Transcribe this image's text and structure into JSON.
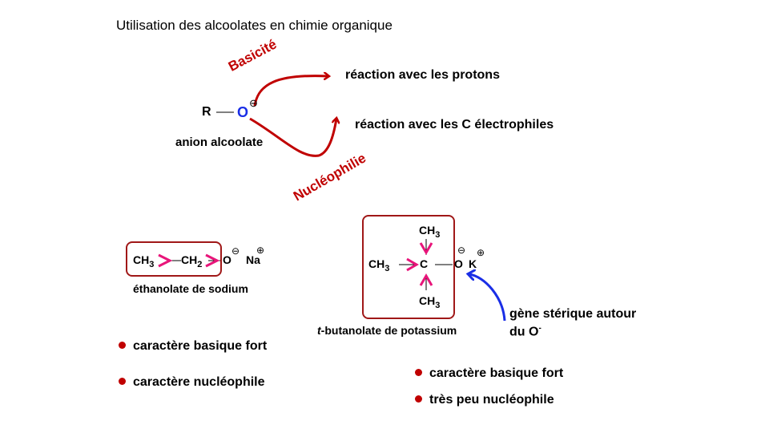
{
  "title": "Utilisation des alcoolates en chimie organique",
  "top": {
    "r_label": "R",
    "o_label": "O",
    "charge_minus": "⊖",
    "anion_label": "anion alcoolate",
    "basicite": "Basicité",
    "nucleophilie": "Nucléophilie",
    "reaction_protons": "réaction avec les protons",
    "reaction_c": "réaction avec les C électrophiles"
  },
  "ethanolate": {
    "ch3": "CH",
    "ch3_sub": "3",
    "ch2": "CH",
    "ch2_sub": "2",
    "o": "O",
    "na": "Na",
    "minus": "⊖",
    "plus": "⊕",
    "name": "éthanolate de sodium",
    "bullets": [
      "caractère basique fort",
      "caractère nucléophile"
    ]
  },
  "tbutanolate": {
    "ch3": "CH",
    "sub3": "3",
    "c": "C",
    "o": "O",
    "k": "K",
    "minus": "⊖",
    "plus": "⊕",
    "name_italic": "t",
    "name_rest": "-butanolate de potassium",
    "steric_line1": "gène stérique autour",
    "steric_line2": "du O",
    "steric_sup": "-",
    "bullets": [
      "caractère basique fort",
      "très peu nucléophile"
    ]
  },
  "colors": {
    "red": "#c00000",
    "blue": "#1a2ee6",
    "pink": "#e8157a",
    "box": "#a01818"
  }
}
